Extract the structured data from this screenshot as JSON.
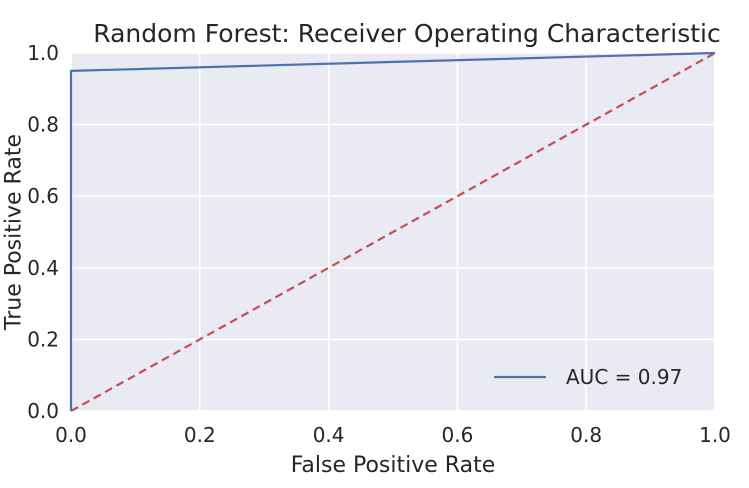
{
  "chart_data": {
    "type": "line",
    "title": "Random Forest: Receiver Operating Characteristic",
    "xlabel": "False Positive Rate",
    "ylabel": "True Positive Rate",
    "xlim": [
      0.0,
      1.0
    ],
    "ylim": [
      0.0,
      1.0
    ],
    "xticks": [
      "0.0",
      "0.2",
      "0.4",
      "0.6",
      "0.8",
      "1.0"
    ],
    "yticks": [
      "0.0",
      "0.2",
      "0.4",
      "0.6",
      "0.8",
      "1.0"
    ],
    "grid": true,
    "legend_position": "lower-right",
    "series": [
      {
        "name": "AUC = 0.97",
        "style": "solid",
        "color": "#4c72b0",
        "x": [
          0.0,
          0.0,
          1.0
        ],
        "y": [
          0.0,
          0.95,
          1.0
        ]
      },
      {
        "style": "dashed",
        "color": "#c44e52",
        "x": [
          0.0,
          1.0
        ],
        "y": [
          0.0,
          1.0
        ]
      }
    ],
    "plot_background": "#eaeaf2",
    "grid_color": "#ffffff"
  }
}
